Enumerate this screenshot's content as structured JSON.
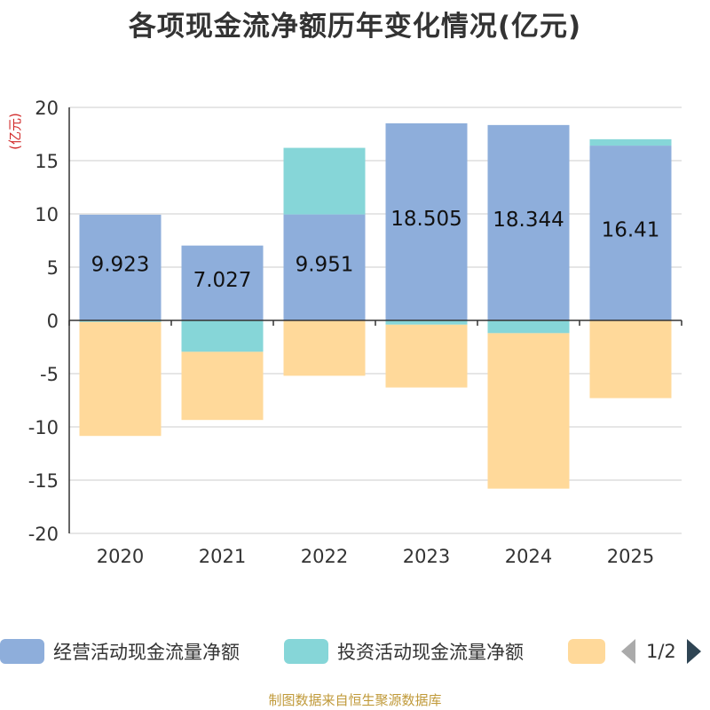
{
  "chart_data": {
    "type": "bar",
    "stacked": true,
    "title": "各项现金流净额历年变化情况(亿元)",
    "ylabel": "(亿元)",
    "ylim": [
      -20,
      20
    ],
    "yticks": [
      20,
      15,
      10,
      5,
      0,
      -5,
      -10,
      -15,
      -20
    ],
    "categories": [
      "2020",
      "2021",
      "2022",
      "2023",
      "2024",
      "2025"
    ],
    "series": [
      {
        "name": "经营活动现金流量净额",
        "color": "#8eaedb",
        "values": [
          9.923,
          7.027,
          9.951,
          18.505,
          18.344,
          16.41
        ],
        "labels": [
          "9.923",
          "7.027",
          "9.951",
          "18.505",
          "18.344",
          "16.41"
        ]
      },
      {
        "name": "投资活动现金流量净额",
        "color": "#86d6d8",
        "values": [
          -0.15,
          -2.95,
          6.25,
          -0.4,
          -1.2,
          0.6
        ]
      },
      {
        "name": "",
        "color": "#ffd99a",
        "values": [
          -10.7,
          -6.4,
          -5.2,
          -5.9,
          -14.6,
          -7.3
        ]
      }
    ],
    "legend": {
      "position": "bottom",
      "page": "1/2"
    }
  },
  "source": "制图数据来自恒生聚源数据库"
}
